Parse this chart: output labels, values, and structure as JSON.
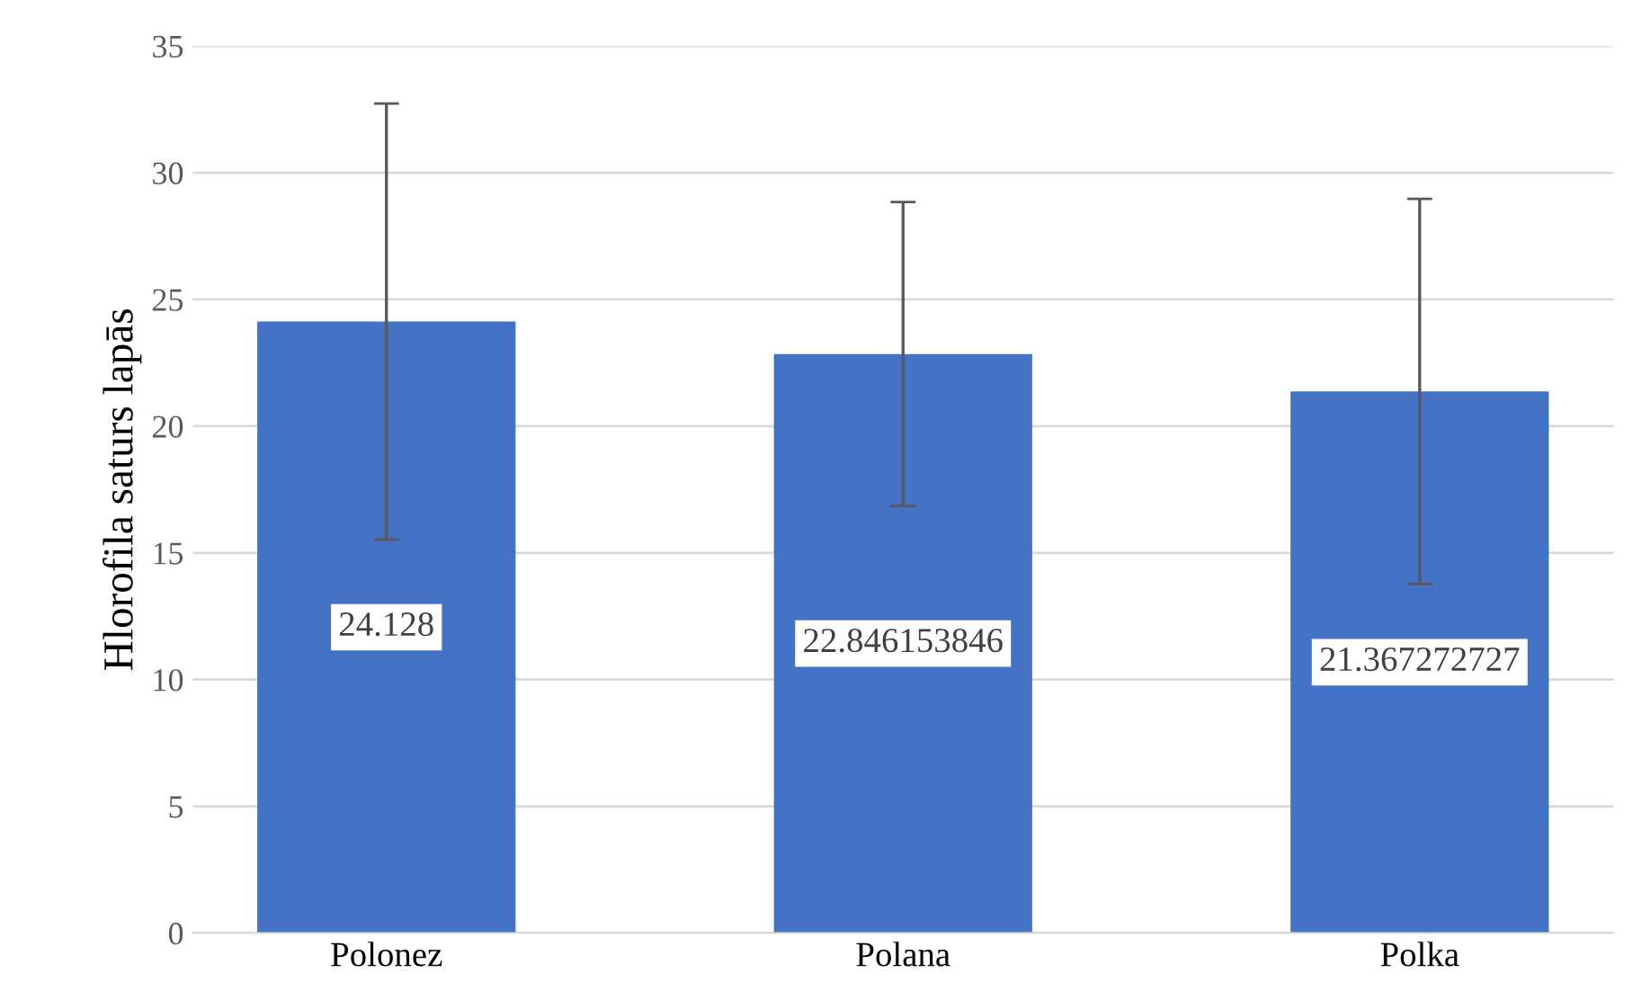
{
  "chart_data": {
    "type": "bar",
    "ylabel": "Hlorofila saturs lapās",
    "categories": [
      "Polonez",
      "Polana",
      "Polka"
    ],
    "values": [
      24.128,
      22.846153846,
      21.367272727
    ],
    "errors": [
      8.6,
      6.0,
      7.6
    ],
    "color": "#4472c4",
    "ylim": [
      0,
      35
    ],
    "yticks": [
      0,
      5,
      10,
      15,
      20,
      25,
      30,
      35
    ],
    "grid": "y",
    "data_labels": true
  }
}
